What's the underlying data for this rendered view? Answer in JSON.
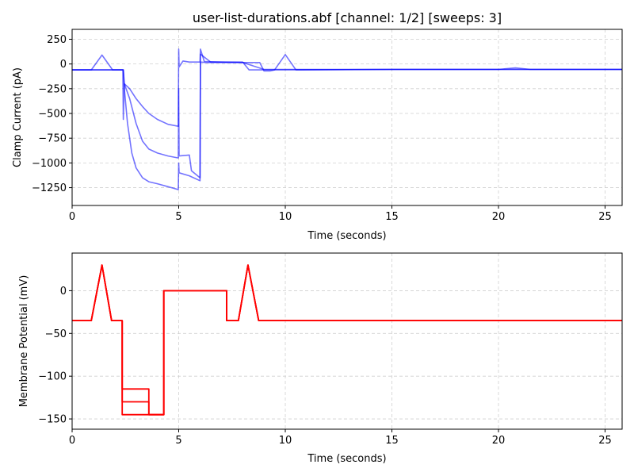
{
  "chart_data": [
    {
      "type": "line",
      "title": "user-list-durations.abf [channel: 1/2] [sweeps: 3]",
      "xlabel": "Time (seconds)",
      "ylabel": "Clamp Current (pA)",
      "xlim": [
        0,
        25.8
      ],
      "ylim": [
        -1430,
        350
      ],
      "xticks": [
        0,
        5,
        10,
        15,
        20,
        25
      ],
      "yticks": [
        250,
        0,
        -250,
        -500,
        -750,
        -1000,
        -1250
      ],
      "xtick_labels": [
        "0",
        "5",
        "10",
        "15",
        "20",
        "25"
      ],
      "ytick_labels": [
        "250",
        "0",
        "−250",
        "−500",
        "−750",
        "−1000",
        "−1250"
      ],
      "grid": true,
      "series": [
        {
          "color": "#0000ff",
          "x": [
            0,
            0.9,
            1.4,
            1.9,
            2.0,
            2.38,
            2.4,
            2.45,
            2.7,
            3.0,
            3.3,
            3.6,
            4.0,
            4.5,
            4.98,
            5.0,
            5.02,
            5.2,
            5.5,
            6.0,
            6.02,
            6.2,
            7.0,
            8.0,
            8.8,
            9.0,
            9.3,
            9.5,
            10.0,
            10.5,
            15,
            20,
            20.8,
            21.5,
            25.8
          ],
          "y": [
            -60,
            -60,
            90,
            -60,
            -60,
            -60,
            -560,
            -200,
            -250,
            -350,
            -430,
            -500,
            -560,
            -610,
            -630,
            150,
            -30,
            30,
            20,
            20,
            150,
            25,
            20,
            15,
            15,
            -70,
            -70,
            -60,
            95,
            -60,
            -55,
            -55,
            -40,
            -55,
            -55
          ]
        },
        {
          "color": "#0000ff",
          "x": [
            0,
            2.4,
            2.45,
            2.7,
            3.0,
            3.3,
            3.6,
            4.0,
            4.5,
            4.98,
            5.0,
            5.02,
            5.5,
            5.6,
            6.0,
            6.02,
            6.5,
            8.0,
            8.3,
            9.0,
            15,
            25.8
          ],
          "y": [
            -60,
            -60,
            -200,
            -350,
            -600,
            -780,
            -860,
            -900,
            -930,
            -950,
            -250,
            -930,
            -920,
            -1080,
            -1150,
            100,
            20,
            20,
            -60,
            -60,
            -55,
            -55
          ]
        },
        {
          "color": "#0000ff",
          "x": [
            0,
            2.4,
            2.45,
            2.6,
            2.8,
            3.0,
            3.3,
            3.6,
            4.0,
            4.5,
            4.98,
            5.0,
            5.02,
            5.5,
            6.0,
            6.02,
            6.3,
            8.0,
            9.0,
            15,
            25.8
          ],
          "y": [
            -60,
            -60,
            -250,
            -600,
            -900,
            -1050,
            -1150,
            -1190,
            -1210,
            -1240,
            -1270,
            -1000,
            -1100,
            -1130,
            -1180,
            20,
            15,
            15,
            -55,
            -55,
            -55
          ]
        }
      ]
    },
    {
      "type": "line",
      "xlabel": "Time (seconds)",
      "ylabel": "Membrane Potential (mV)",
      "xlim": [
        0,
        25.8
      ],
      "ylim": [
        -162,
        44
      ],
      "xticks": [
        0,
        5,
        10,
        15,
        20,
        25
      ],
      "yticks": [
        0,
        -50,
        -100,
        -150
      ],
      "xtick_labels": [
        "0",
        "5",
        "10",
        "15",
        "20",
        "25"
      ],
      "ytick_labels": [
        "0",
        "−50",
        "−100",
        "−150"
      ],
      "grid": true,
      "series": [
        {
          "color": "#ff0000",
          "x": [
            0,
            0.9,
            1.4,
            1.85,
            2.35,
            2.35,
            3.6,
            3.6,
            4.3,
            4.3,
            7.25,
            7.25,
            7.8,
            8.25,
            8.75,
            25.8
          ],
          "y": [
            -35,
            -35,
            30,
            -35,
            -35,
            -115,
            -115,
            -145,
            -145,
            0,
            0,
            -35,
            -35,
            30,
            -35,
            -35
          ]
        },
        {
          "color": "#ff0000",
          "x": [
            0,
            0.9,
            1.4,
            1.85,
            2.35,
            2.35,
            3.6,
            3.6,
            4.3,
            4.3,
            7.25,
            7.25,
            7.8,
            8.25,
            8.75,
            25.8
          ],
          "y": [
            -35,
            -35,
            30,
            -35,
            -35,
            -130,
            -130,
            -145,
            -145,
            0,
            0,
            -35,
            -35,
            30,
            -35,
            -35
          ]
        },
        {
          "color": "#ff0000",
          "x": [
            0,
            0.9,
            1.4,
            1.85,
            2.35,
            2.35,
            4.3,
            4.3,
            7.25,
            7.25,
            7.8,
            8.25,
            8.75,
            25.8
          ],
          "y": [
            -35,
            -35,
            30,
            -35,
            -35,
            -145,
            -145,
            0,
            0,
            -35,
            -35,
            30,
            -35,
            -35
          ]
        }
      ]
    }
  ]
}
